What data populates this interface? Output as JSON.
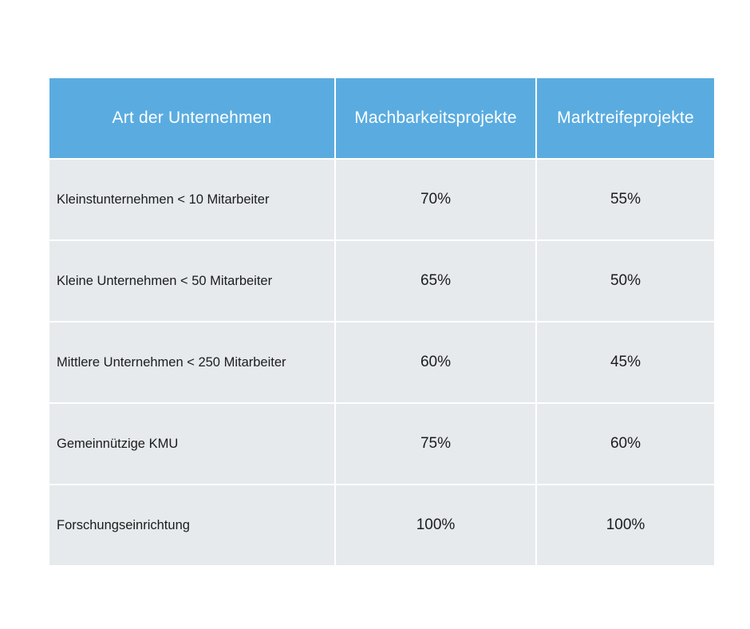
{
  "colors": {
    "header_bg": "#5aace0",
    "header_text": "#ffffff",
    "row_bg": "#e6eaed",
    "row_text": "#1c1c1c",
    "grid_lines": "#ffffff"
  },
  "table": {
    "headers": [
      "Art der Unternehmen",
      "Machbarkeitsprojekte",
      "Marktreifeprojekte"
    ],
    "rows": [
      {
        "type": "Kleinstunternehmen < 10 Mitarbeiter",
        "machbarkeit": "70%",
        "marktreife": "55%"
      },
      {
        "type": "Kleine Unternehmen < 50 Mitarbeiter",
        "machbarkeit": "65%",
        "marktreife": "50%"
      },
      {
        "type": "Mittlere Unternehmen < 250 Mitarbeiter",
        "machbarkeit": "60%",
        "marktreife": "45%"
      },
      {
        "type": "Gemeinnützige KMU",
        "machbarkeit": "75%",
        "marktreife": "60%"
      },
      {
        "type": "Forschungseinrichtung",
        "machbarkeit": "100%",
        "marktreife": "100%"
      }
    ]
  }
}
